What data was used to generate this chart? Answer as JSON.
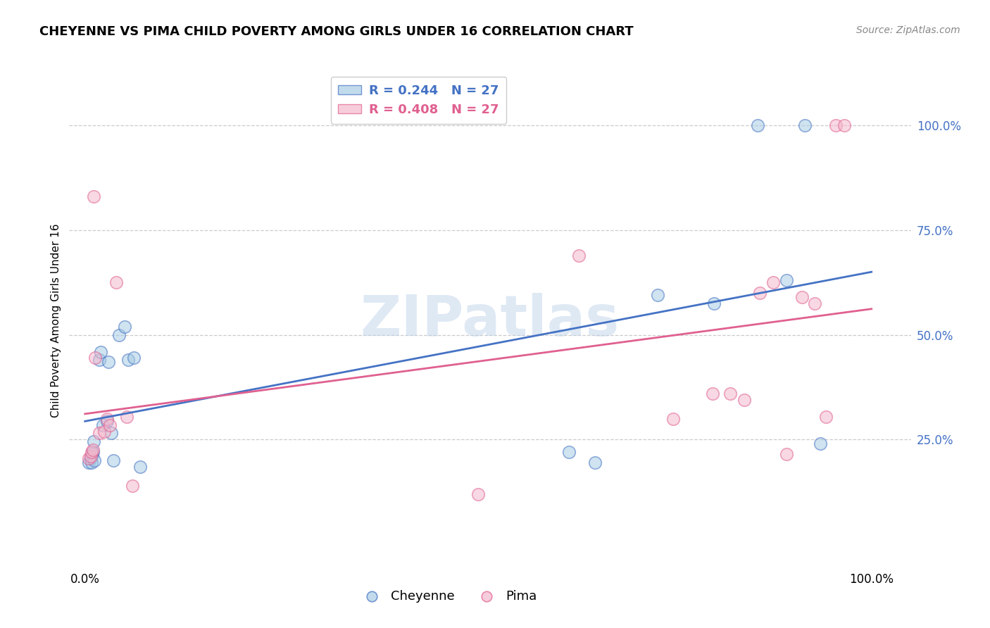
{
  "title": "CHEYENNE VS PIMA CHILD POVERTY AMONG GIRLS UNDER 16 CORRELATION CHART",
  "source": "Source: ZipAtlas.com",
  "ylabel": "Child Poverty Among Girls Under 16",
  "cheyenne_color": "#a8cce4",
  "pima_color": "#f4b8cc",
  "regression_blue": "#4472c4",
  "regression_pink": "#e06090",
  "legend_r_blue": "R = 0.244   N = 27",
  "legend_r_pink": "R = 0.408   N = 27",
  "watermark": "ZIPatlas",
  "cheyenne_x": [
    0.005,
    0.007,
    0.008,
    0.009,
    0.01,
    0.011,
    0.012,
    0.018,
    0.02,
    0.023,
    0.028,
    0.03,
    0.033,
    0.036,
    0.043,
    0.05,
    0.055,
    0.062,
    0.07,
    0.615,
    0.648,
    0.728,
    0.8,
    0.855,
    0.892,
    0.915,
    0.935
  ],
  "cheyenne_y": [
    0.195,
    0.205,
    0.195,
    0.215,
    0.22,
    0.245,
    0.2,
    0.44,
    0.46,
    0.285,
    0.295,
    0.435,
    0.265,
    0.2,
    0.5,
    0.52,
    0.44,
    0.445,
    0.185,
    0.22,
    0.195,
    0.595,
    0.575,
    1.0,
    0.63,
    1.0,
    0.24
  ],
  "pima_x": [
    0.005,
    0.007,
    0.008,
    0.01,
    0.011,
    0.013,
    0.018,
    0.024,
    0.028,
    0.032,
    0.04,
    0.053,
    0.06,
    0.5,
    0.628,
    0.748,
    0.798,
    0.82,
    0.838,
    0.858,
    0.875,
    0.892,
    0.912,
    0.928,
    0.942,
    0.955,
    0.965
  ],
  "pima_y": [
    0.205,
    0.21,
    0.22,
    0.225,
    0.83,
    0.445,
    0.265,
    0.27,
    0.3,
    0.285,
    0.625,
    0.305,
    0.14,
    0.12,
    0.69,
    0.3,
    0.36,
    0.36,
    0.345,
    0.6,
    0.625,
    0.215,
    0.59,
    0.575,
    0.305,
    1.0,
    1.0
  ],
  "xlim": [
    -0.02,
    1.05
  ],
  "ylim": [
    -0.05,
    1.12
  ],
  "yticks": [
    0.25,
    0.5,
    0.75,
    1.0
  ],
  "xticks": [
    0.0,
    1.0
  ],
  "ytick_color": "#4472c4",
  "grid_color": "#cccccc",
  "title_fontsize": 13,
  "source_fontsize": 10,
  "axis_label_fontsize": 11,
  "tick_fontsize": 12,
  "legend_fontsize": 13,
  "scatter_size": 160,
  "scatter_alpha": 0.55,
  "scatter_lw": 1.2,
  "reg_lw": 2.0
}
